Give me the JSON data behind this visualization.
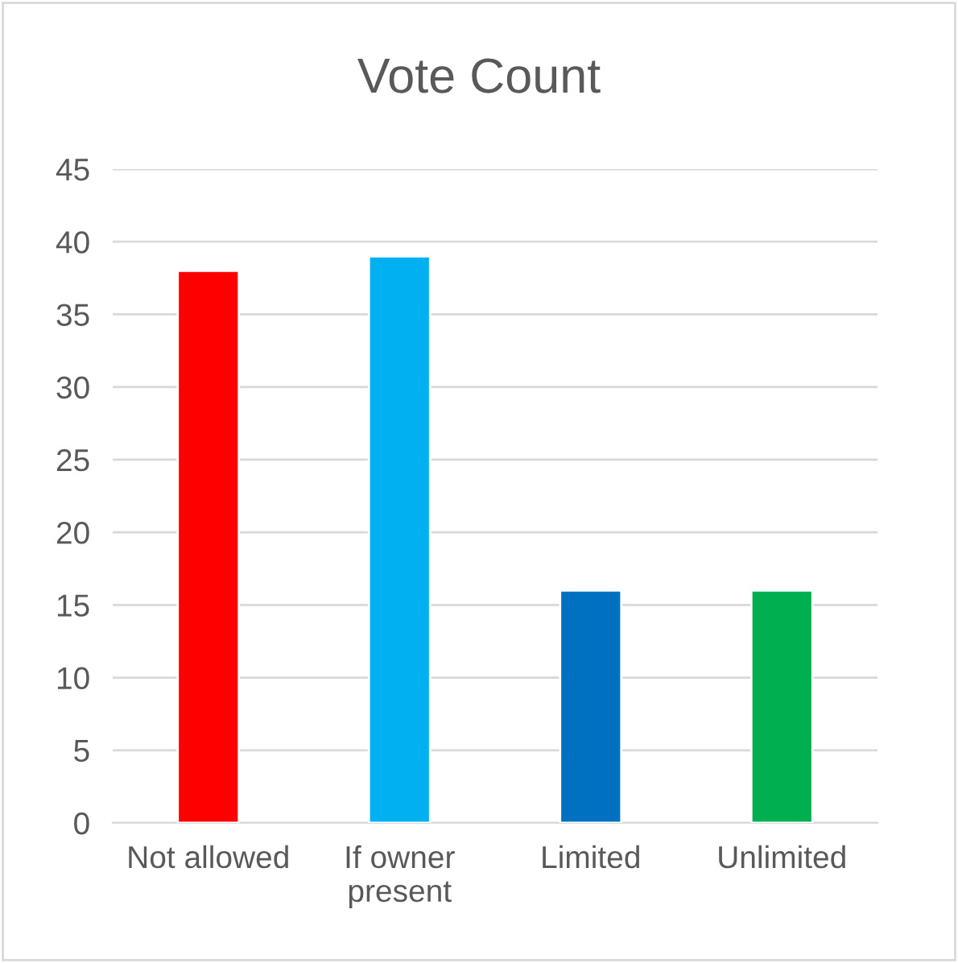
{
  "chart_data": {
    "type": "bar",
    "title": "Vote Count",
    "categories": [
      "Not allowed",
      "If owner\npresent",
      "Limited",
      "Unlimited"
    ],
    "values": [
      38,
      39,
      16,
      16
    ],
    "colors": [
      "#ff0000",
      "#00b0f0",
      "#0070c0",
      "#00b050"
    ],
    "ylim": [
      0,
      45
    ],
    "yticks": [
      0,
      5,
      10,
      15,
      20,
      25,
      30,
      35,
      40,
      45
    ],
    "grid": "y",
    "legend": false
  }
}
